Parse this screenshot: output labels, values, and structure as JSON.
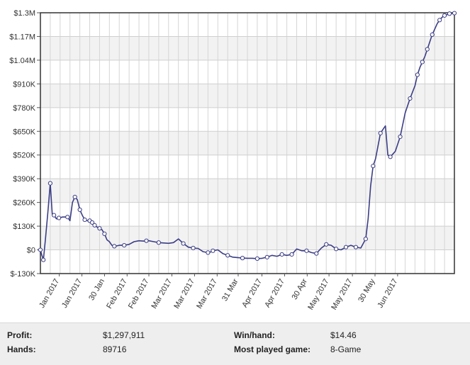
{
  "chart_data": {
    "type": "line",
    "title": "",
    "xlabel": "",
    "ylabel": "",
    "ylim": [
      -130000,
      1300000
    ],
    "grid": true,
    "legend": "none",
    "y_ticks": [
      -130000,
      0,
      130000,
      260000,
      390000,
      520000,
      650000,
      780000,
      910000,
      1040000,
      1170000,
      1300000
    ],
    "y_tick_labels": [
      "$-130K",
      "$0",
      "$130K",
      "$260K",
      "$390K",
      "$520K",
      "$650K",
      "$780K",
      "$910K",
      "$1.04M",
      "$1.17M",
      "$1.3M"
    ],
    "x_tick_labels": [
      "Jan 2017",
      "Jan 2017",
      "30 Jan",
      "Feb 2017",
      "Feb 2017",
      "Mar 2017",
      "Mar 2017",
      "Mar 2017",
      "31 Mar",
      "Apr 2017",
      "Apr 2017",
      "30 Apr",
      "May 2017",
      "May 2017",
      "30 May",
      "Jun 2017"
    ],
    "x_label_fractions": [
      0.0456,
      0.1003,
      0.1549,
      0.2094,
      0.262,
      0.3176,
      0.3723,
      0.4269,
      0.4777,
      0.5351,
      0.5898,
      0.6444,
      0.6971,
      0.7536,
      0.8082,
      0.8628
    ],
    "line_color": "#3b3d85",
    "series": [
      {
        "x": [
          0,
          0.6,
          1.2,
          2,
          3,
          4,
          4.8,
          5.5,
          6.5,
          7.5,
          9,
          10,
          11,
          12,
          13,
          14,
          15,
          16,
          17,
          18,
          19,
          20,
          21,
          22,
          23,
          24,
          25,
          26,
          27,
          28,
          29,
          30,
          31,
          32,
          34,
          36,
          38,
          40,
          42,
          43,
          44,
          46,
          48,
          50,
          52,
          54,
          56,
          58,
          60,
          62,
          64,
          66,
          68,
          69,
          70,
          72,
          74,
          76,
          78,
          80,
          82,
          84,
          86,
          88,
          90,
          92,
          94,
          96,
          98,
          100,
          102,
          104,
          106,
          108,
          110,
          112,
          114,
          116,
          118,
          120,
          122,
          124,
          126,
          128,
          130,
          132,
          133,
          134,
          135,
          136,
          138,
          140,
          141,
          142,
          144,
          146,
          148,
          150,
          152,
          153,
          154,
          155,
          156,
          157,
          158,
          159,
          160,
          161,
          162,
          163,
          164,
          165,
          166,
          167,
          168
        ],
        "y": [
          0,
          -30000,
          -55000,
          55000,
          200000,
          365000,
          195000,
          190000,
          170000,
          175000,
          180000,
          180000,
          180000,
          160000,
          260000,
          290000,
          275000,
          220000,
          190000,
          165000,
          160000,
          160000,
          150000,
          135000,
          125000,
          118000,
          110000,
          88000,
          55000,
          45000,
          25000,
          20000,
          22000,
          25000,
          25000,
          30000,
          45000,
          50000,
          48000,
          50000,
          50000,
          45000,
          40000,
          38000,
          36000,
          40000,
          60000,
          35000,
          15000,
          10000,
          8000,
          -10000,
          -15000,
          -12000,
          -5000,
          0,
          -20000,
          -30000,
          -40000,
          -42000,
          -45000,
          -46000,
          -46000,
          -48000,
          -46000,
          -40000,
          -30000,
          -35000,
          -25000,
          -30000,
          -25000,
          5000,
          -5000,
          -5000,
          -15000,
          -20000,
          10000,
          30000,
          25000,
          5000,
          0,
          15000,
          25000,
          15000,
          10000,
          60000,
          170000,
          350000,
          460000,
          500000,
          640000,
          680000,
          520000,
          510000,
          540000,
          620000,
          750000,
          830000,
          900000,
          960000,
          1000000,
          1030000,
          1060000,
          1100000,
          1140000,
          1180000,
          1210000,
          1240000,
          1260000,
          1275000,
          1285000,
          1290000,
          1295000,
          1297000,
          1297911
        ],
        "markers": [
          0,
          2,
          5,
          7,
          9,
          12,
          15,
          17,
          19,
          21,
          22,
          23,
          25,
          27,
          31,
          34,
          39,
          42,
          47,
          49,
          52,
          54,
          57,
          60,
          63,
          65,
          68,
          70,
          73,
          75,
          77,
          79,
          81,
          83,
          85,
          88,
          90,
          93,
          95,
          97,
          99,
          101,
          103,
          105,
          108,
          110,
          112,
          114
        ]
      }
    ]
  },
  "stats": {
    "profit_label": "Profit:",
    "profit_value": "$1,297,911",
    "hands_label": "Hands:",
    "hands_value": "89716",
    "winhand_label": "Win/hand:",
    "winhand_value": "$14.46",
    "game_label": "Most played game:",
    "game_value": "8-Game"
  }
}
